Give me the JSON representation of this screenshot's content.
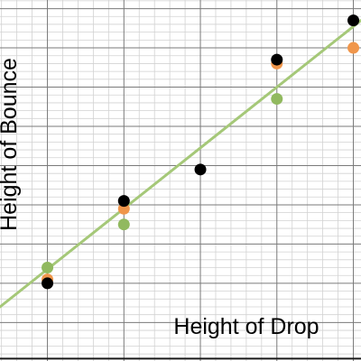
{
  "chart_data": {
    "type": "scatter",
    "title": "",
    "xlabel": "Height of Drop",
    "ylabel": "Height of Bounce",
    "grid": true,
    "xlim": [
      -0.62,
      4.1
    ],
    "ylim": [
      0.51,
      5.11
    ],
    "series": [
      {
        "color": "#000000",
        "points": [
          [
            0,
            1.5
          ],
          [
            1,
            2.55
          ],
          [
            2,
            2.95
          ],
          [
            3,
            4.35
          ],
          [
            4,
            4.85
          ]
        ]
      },
      {
        "color": "#f0964b",
        "points": [
          [
            0,
            1.55
          ],
          [
            1,
            2.45
          ],
          [
            3,
            4.3
          ],
          [
            4,
            4.5
          ]
        ]
      },
      {
        "color": "#91b95f",
        "points": [
          [
            0,
            1.7
          ],
          [
            1,
            2.25
          ],
          [
            3,
            3.85
          ]
        ]
      }
    ],
    "fit_line": {
      "color": "#a5c878",
      "points": [
        [
          -0.62,
          1.2
        ],
        [
          4.1,
          4.85
        ]
      ]
    }
  }
}
